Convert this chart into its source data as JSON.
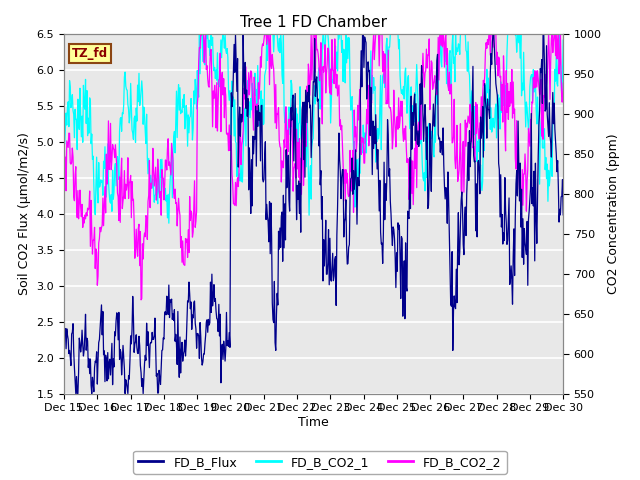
{
  "title": "Tree 1 FD Chamber",
  "xlabel": "Time",
  "ylabel_left": "Soil CO2 Flux (μmol/m2/s)",
  "ylabel_right": "CO2 Concentration (ppm)",
  "ylim_left": [
    1.5,
    6.5
  ],
  "ylim_right": [
    550,
    1000
  ],
  "xtick_labels": [
    "Dec 15",
    "Dec 16",
    "Dec 17",
    "Dec 18",
    "Dec 19",
    "Dec 20",
    "Dec 21",
    "Dec 22",
    "Dec 23",
    "Dec 24",
    "Dec 25",
    "Dec 26",
    "Dec 27",
    "Dec 28",
    "Dec 29",
    "Dec 30"
  ],
  "legend_labels": [
    "FD_B_Flux",
    "FD_B_CO2_1",
    "FD_B_CO2_2"
  ],
  "colors": {
    "flux": "#00008B",
    "co2_1": "#00FFFF",
    "co2_2": "#FF00FF"
  },
  "annotation_text": "TZ_fd",
  "annotation_bg": "#FFFF99",
  "annotation_border": "#8B4513",
  "fig_bg": "#FFFFFF",
  "plot_bg": "#E8E8E8",
  "grid_color": "#FFFFFF",
  "title_fontsize": 11,
  "axis_fontsize": 9,
  "tick_fontsize": 8,
  "legend_fontsize": 9,
  "yticks_left": [
    1.5,
    2.0,
    2.5,
    3.0,
    3.5,
    4.0,
    4.5,
    5.0,
    5.5,
    6.0,
    6.5
  ],
  "yticks_right": [
    550,
    600,
    650,
    700,
    750,
    800,
    850,
    900,
    950,
    1000
  ]
}
